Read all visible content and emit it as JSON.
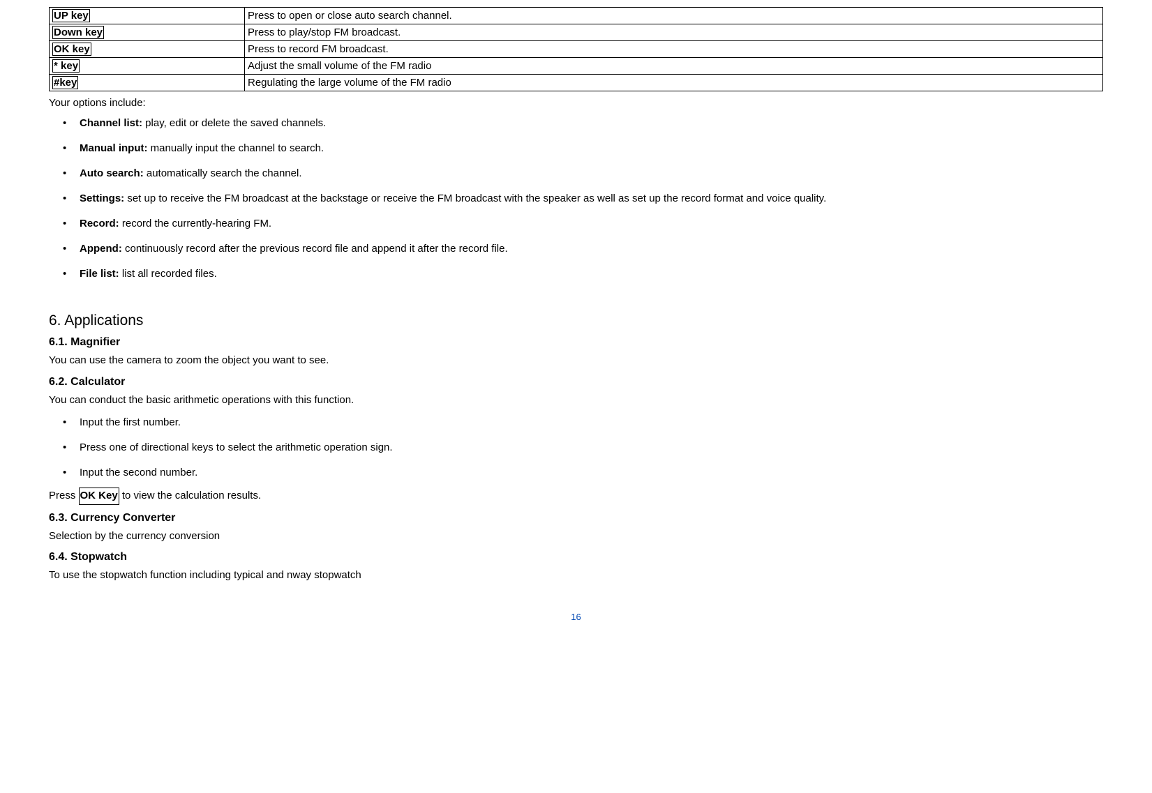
{
  "table": {
    "rows": [
      {
        "key": "UP key",
        "desc": "Press to open or close auto search channel."
      },
      {
        "key": "Down key",
        "desc": "Press to play/stop FM broadcast."
      },
      {
        "key": "OK key",
        "desc": "Press to record FM broadcast."
      },
      {
        "key": "* key",
        "desc": "Adjust the small volume of the FM radio"
      },
      {
        "key": "#key",
        "desc": "Regulating the large volume of the FM radio"
      }
    ]
  },
  "optionsIntro": "Your options include:",
  "options": [
    {
      "title": "Channel list:",
      "text": " play, edit or delete the saved channels."
    },
    {
      "title": "Manual input:",
      "text": " manually input the channel to search."
    },
    {
      "title": "Auto search:",
      "text": " automatically search the channel."
    },
    {
      "title": "Settings:",
      "text": " set up to receive the FM broadcast at the backstage or receive the FM broadcast with the speaker as well as set up the record format and voice quality."
    },
    {
      "title": "Record:",
      "text": " record the currently-hearing FM."
    },
    {
      "title": "Append:",
      "text": " continuously record after the previous record file and append it after the record file."
    },
    {
      "title": "File list:",
      "text": " list all recorded files."
    }
  ],
  "section6": {
    "heading": "6.  Applications",
    "s1": {
      "title": "6.1.  Magnifier",
      "body": "You can use the camera to zoom the object you want to see."
    },
    "s2": {
      "title": "6.2.  Calculator",
      "body": "You can conduct the basic arithmetic operations with this function.",
      "steps": [
        "Input the first number.",
        "Press one of directional keys to select the arithmetic operation sign.",
        "Input the second number."
      ],
      "pressPrefix": "Press ",
      "pressKey": "OK Key",
      "pressSuffix": " to view the calculation results."
    },
    "s3": {
      "title": "6.3.  Currency Converter",
      "body": "Selection by the currency conversion"
    },
    "s4": {
      "title": "6.4.  Stopwatch",
      "body": "To use the stopwatch function including typical and nway stopwatch"
    }
  },
  "pageNumber": "16"
}
